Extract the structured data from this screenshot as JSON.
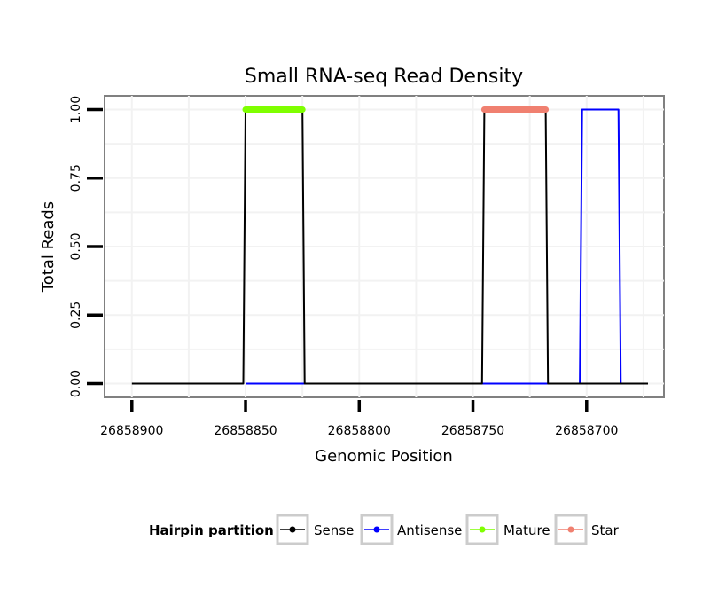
{
  "chart_data": {
    "type": "line",
    "title": "Small RNA-seq Read Density",
    "xlabel": "Genomic Position",
    "ylabel": "Total Reads",
    "x_reversed": true,
    "xlim": [
      26858912,
      26858666
    ],
    "ylim": [
      -0.05,
      1.05
    ],
    "x_ticks": [
      26858900,
      26858850,
      26858800,
      26858750,
      26858700
    ],
    "x_tick_labels": [
      "26858900",
      "26858850",
      "26858800",
      "26858750",
      "26858700"
    ],
    "y_ticks": [
      0,
      0.25,
      0.5,
      0.75,
      1.0
    ],
    "y_tick_labels": [
      "0.00",
      "0.25",
      "0.50",
      "0.75",
      "1.00"
    ],
    "grid": true,
    "legend_title": "Hairpin partition",
    "legend_position": "bottom",
    "series": [
      {
        "name": "Sense",
        "color": "#000000",
        "x": [
          26858900,
          26858851,
          26858850,
          26858825,
          26858824,
          26858746,
          26858745,
          26858718,
          26858717,
          26858673
        ],
        "y": [
          0,
          0,
          1,
          1,
          0,
          0,
          1,
          1,
          0,
          0
        ]
      },
      {
        "name": "Antisense",
        "color": "#0000ff",
        "x": [
          26858850,
          26858824,
          26858745,
          26858717,
          26858716,
          26858703,
          26858702,
          26858686,
          26858685
        ],
        "y": [
          0,
          0,
          0,
          0,
          0,
          0,
          1,
          1,
          0
        ]
      },
      {
        "name": "Mature",
        "color": "#7fff00",
        "x": [
          26858850,
          26858825
        ],
        "y": [
          1,
          1
        ]
      },
      {
        "name": "Star",
        "color": "#f08070",
        "x": [
          26858745,
          26858718
        ],
        "y": [
          1,
          1
        ]
      }
    ]
  }
}
